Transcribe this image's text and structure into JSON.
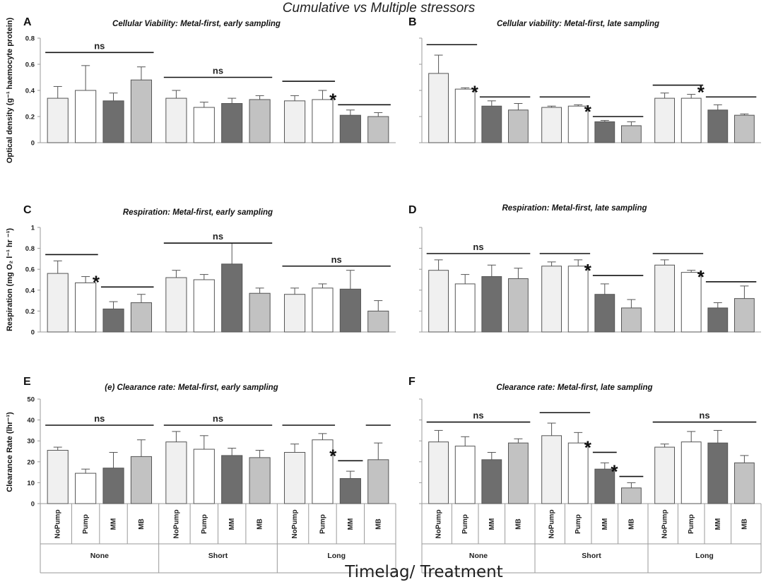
{
  "figure": {
    "title": "Cumulative vs Multiple stressors",
    "xlabel": "Timelag/ Treatment"
  },
  "colors": {
    "NoPump": "#f0f0f0",
    "Pump": "#ffffff",
    "MM": "#6e6e6e",
    "MB": "#c2c2c2"
  },
  "chart_data": [
    {
      "id": "A",
      "type": "bar",
      "title": "Cellular Viability:  Metal-first, early sampling",
      "ylabel": "Optical density (g⁻¹ haemocyte protein)",
      "ylim": [
        0,
        0.8
      ],
      "yticks": [
        "0",
        "0.2",
        "0.4",
        "0.6",
        "0.8"
      ],
      "groups": [
        "None",
        "Short",
        "Long"
      ],
      "categories": [
        "NoPump",
        "Pump",
        "MM",
        "MB"
      ],
      "values": [
        [
          0.34,
          0.4,
          0.32,
          0.48
        ],
        [
          0.34,
          0.27,
          0.3,
          0.33
        ],
        [
          0.32,
          0.33,
          0.21,
          0.2
        ]
      ],
      "errors": [
        [
          0.09,
          0.19,
          0.06,
          0.1
        ],
        [
          0.06,
          0.04,
          0.04,
          0.03
        ],
        [
          0.04,
          0.07,
          0.04,
          0.03
        ]
      ],
      "annotations": [
        {
          "type": "ns",
          "label": "ns",
          "group": 0,
          "from": 0,
          "to": 3,
          "y": 0.69
        },
        {
          "type": "ns",
          "label": "ns",
          "group": 1,
          "from": 0,
          "to": 3,
          "y": 0.5
        },
        {
          "type": "line",
          "group": 2,
          "from": 0,
          "to": 1,
          "y": 0.47
        },
        {
          "type": "star",
          "label": "*",
          "group": 2,
          "from": 2,
          "to": 3,
          "y": 0.29
        }
      ]
    },
    {
      "id": "B",
      "type": "bar",
      "title": "Cellular viability:  Metal-first, late sampling",
      "ylabel": "",
      "ylim": [
        0,
        0.8
      ],
      "yticks": [],
      "groups": [
        "None",
        "Short",
        "Long"
      ],
      "categories": [
        "NoPump",
        "Pump",
        "MM",
        "MB"
      ],
      "values": [
        [
          0.53,
          0.41,
          0.28,
          0.25
        ],
        [
          0.27,
          0.28,
          0.16,
          0.13
        ],
        [
          0.34,
          0.34,
          0.25,
          0.21
        ]
      ],
      "errors": [
        [
          0.14,
          0.01,
          0.04,
          0.05
        ],
        [
          0.01,
          0.01,
          0.01,
          0.03
        ],
        [
          0.04,
          0.03,
          0.04,
          0.01
        ]
      ],
      "annotations": [
        {
          "type": "line",
          "group": 0,
          "from": 0,
          "to": 1,
          "y": 0.75
        },
        {
          "type": "star",
          "label": "*",
          "group": 0,
          "from": 2,
          "to": 3,
          "y": 0.35
        },
        {
          "type": "line",
          "group": 1,
          "from": 0,
          "to": 1,
          "y": 0.35
        },
        {
          "type": "star",
          "label": "*",
          "group": 1,
          "from": 2,
          "to": 3,
          "y": 0.2
        },
        {
          "type": "line",
          "group": 2,
          "from": 0,
          "to": 1,
          "y": 0.44
        },
        {
          "type": "star",
          "label": "*",
          "group": 2,
          "from": 2,
          "to": 3,
          "y": 0.35
        }
      ]
    },
    {
      "id": "C",
      "type": "bar",
      "title": "Respiration:  Metal-first, early sampling",
      "ylabel": "Respiration (mg O₂ l⁻¹ hr ⁻¹)",
      "ylim": [
        0,
        1.0
      ],
      "yticks": [
        "0",
        "0.2",
        "0.4",
        "0.6",
        "0.8",
        "1"
      ],
      "groups": [
        "None",
        "Short",
        "Long"
      ],
      "categories": [
        "NoPump",
        "Pump",
        "MM",
        "MB"
      ],
      "values": [
        [
          0.56,
          0.47,
          0.22,
          0.28
        ],
        [
          0.52,
          0.5,
          0.65,
          0.37
        ],
        [
          0.36,
          0.42,
          0.41,
          0.2
        ]
      ],
      "errors": [
        [
          0.12,
          0.06,
          0.07,
          0.08
        ],
        [
          0.07,
          0.05,
          0.2,
          0.05
        ],
        [
          0.06,
          0.04,
          0.18,
          0.1
        ]
      ],
      "annotations": [
        {
          "type": "line",
          "group": 0,
          "from": 0,
          "to": 1,
          "y": 0.74
        },
        {
          "type": "star",
          "label": "*",
          "group": 0,
          "from": 2,
          "to": 3,
          "y": 0.43
        },
        {
          "type": "ns",
          "label": "ns",
          "group": 1,
          "from": 0,
          "to": 3,
          "y": 0.85
        },
        {
          "type": "ns",
          "label": "ns",
          "group": 2,
          "from": 0,
          "to": 3,
          "y": 0.63
        }
      ]
    },
    {
      "id": "D",
      "type": "bar",
      "title": "Respiration:  Metal-first, late sampling",
      "ylabel": "",
      "ylim": [
        0,
        1.0
      ],
      "yticks": [],
      "groups": [
        "None",
        "Short",
        "Long"
      ],
      "categories": [
        "NoPump",
        "Pump",
        "MM",
        "MB"
      ],
      "values": [
        [
          0.59,
          0.46,
          0.53,
          0.51
        ],
        [
          0.63,
          0.63,
          0.36,
          0.23
        ],
        [
          0.64,
          0.57,
          0.23,
          0.32
        ]
      ],
      "errors": [
        [
          0.1,
          0.09,
          0.11,
          0.1
        ],
        [
          0.04,
          0.06,
          0.1,
          0.08
        ],
        [
          0.05,
          0.02,
          0.05,
          0.12
        ]
      ],
      "annotations": [
        {
          "type": "ns",
          "label": "ns",
          "group": 0,
          "from": 0,
          "to": 3,
          "y": 0.75
        },
        {
          "type": "line",
          "group": 1,
          "from": 0,
          "to": 1,
          "y": 0.75
        },
        {
          "type": "star",
          "label": "*",
          "group": 1,
          "from": 2,
          "to": 3,
          "y": 0.54
        },
        {
          "type": "line",
          "group": 2,
          "from": 0,
          "to": 1,
          "y": 0.75
        },
        {
          "type": "star",
          "label": "*",
          "group": 2,
          "from": 2,
          "to": 3,
          "y": 0.48
        }
      ]
    },
    {
      "id": "E",
      "type": "bar",
      "title": "(e) Clearance rate: Metal-first, early sampling",
      "ylabel": "Clearance Rate (lhr⁻¹)",
      "ylim": [
        0,
        50
      ],
      "yticks": [
        "0",
        "10",
        "20",
        "30",
        "40",
        "50"
      ],
      "groups": [
        "None",
        "Short",
        "Long"
      ],
      "categories": [
        "NoPump",
        "Pump",
        "MM",
        "MB"
      ],
      "values": [
        [
          25.5,
          14.5,
          17.0,
          22.5
        ],
        [
          29.5,
          26.0,
          23.0,
          22.0
        ],
        [
          24.5,
          30.5,
          12.0,
          21.0
        ]
      ],
      "errors": [
        [
          1.5,
          2.0,
          7.5,
          8.0
        ],
        [
          5.0,
          6.5,
          3.5,
          3.5
        ],
        [
          4.0,
          3.0,
          3.5,
          8.0
        ]
      ],
      "annotations": [
        {
          "type": "ns",
          "label": "ns",
          "group": 0,
          "from": 0,
          "to": 3,
          "y": 37.5
        },
        {
          "type": "ns",
          "label": "ns",
          "group": 1,
          "from": 0,
          "to": 3,
          "y": 37.5
        },
        {
          "type": "line",
          "group": 2,
          "from": 0,
          "to": 1,
          "y": 37.5
        },
        {
          "type": "star",
          "label": "*",
          "group": 2,
          "from": 2,
          "to": 2,
          "y": 20.5
        },
        {
          "type": "line",
          "group": 2,
          "from": 3,
          "to": 3,
          "y": 37.5
        }
      ]
    },
    {
      "id": "F",
      "type": "bar",
      "title": "Clearance rate: Metal-first, late sampling",
      "ylabel": "",
      "ylim": [
        0,
        50
      ],
      "yticks": [],
      "groups": [
        "None",
        "Short",
        "Long"
      ],
      "categories": [
        "NoPump",
        "Pump",
        "MM",
        "MB"
      ],
      "values": [
        [
          29.5,
          27.5,
          21.0,
          29.0
        ],
        [
          32.5,
          29.0,
          16.5,
          7.5
        ],
        [
          27.0,
          29.5,
          29.0,
          19.5
        ]
      ],
      "errors": [
        [
          5.5,
          4.5,
          3.5,
          2.0
        ],
        [
          6.0,
          5.0,
          3.0,
          2.5
        ],
        [
          1.5,
          5.0,
          6.0,
          3.5
        ]
      ],
      "annotations": [
        {
          "type": "ns",
          "label": "ns",
          "group": 0,
          "from": 0,
          "to": 3,
          "y": 39.0
        },
        {
          "type": "line",
          "group": 1,
          "from": 0,
          "to": 1,
          "y": 43.5
        },
        {
          "type": "star",
          "label": "*",
          "group": 1,
          "from": 2,
          "to": 2,
          "y": 24.5
        },
        {
          "type": "star",
          "label": "*",
          "group": 1,
          "from": 3,
          "to": 3,
          "y": 13.0
        },
        {
          "type": "ns",
          "label": "ns",
          "group": 2,
          "from": 0,
          "to": 3,
          "y": 39.0
        }
      ]
    }
  ]
}
